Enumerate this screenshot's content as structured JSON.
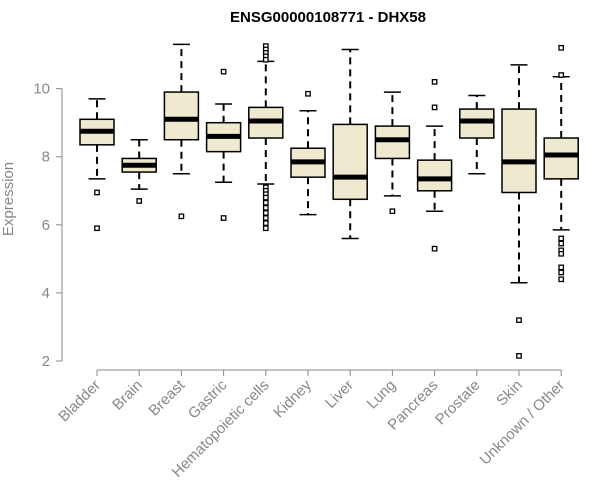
{
  "chart_data": {
    "type": "boxplot",
    "title": "ENSG00000108771 - DHX58",
    "ylabel": "Expression",
    "xlabel": "",
    "ylim": [
      2,
      11.4
    ],
    "yticks": [
      2,
      4,
      6,
      8,
      10
    ],
    "grid": false,
    "colors": {
      "box_fill": "#efe9d0",
      "box_stroke": "#000000",
      "median": "#000000",
      "axis": "#888888"
    },
    "categories": [
      "Bladder",
      "Brain",
      "Breast",
      "Gastric",
      "Hematopoietic cells",
      "Kidney",
      "Liver",
      "Lung",
      "Pancreas",
      "Prostate",
      "Skin",
      "Unknown / Other"
    ],
    "boxes": [
      {
        "name": "Bladder",
        "whisker_low": 7.35,
        "q1": 8.35,
        "median": 8.75,
        "q3": 9.1,
        "whisker_high": 9.7,
        "outliers": [
          6.95,
          5.9
        ]
      },
      {
        "name": "Brain",
        "whisker_low": 7.05,
        "q1": 7.55,
        "median": 7.75,
        "q3": 7.95,
        "whisker_high": 8.5,
        "outliers": [
          6.7
        ]
      },
      {
        "name": "Breast",
        "whisker_low": 7.5,
        "q1": 8.5,
        "median": 9.1,
        "q3": 9.9,
        "whisker_high": 11.3,
        "outliers": [
          6.25
        ]
      },
      {
        "name": "Gastric",
        "whisker_low": 7.25,
        "q1": 8.15,
        "median": 8.6,
        "q3": 9.0,
        "whisker_high": 9.55,
        "outliers": [
          10.5,
          6.2
        ]
      },
      {
        "name": "Hematopoietic cells",
        "whisker_low": 7.2,
        "q1": 8.55,
        "median": 9.05,
        "q3": 9.45,
        "whisker_high": 10.8,
        "outliers": [
          11.25,
          11.15,
          11.05,
          10.95,
          10.85,
          7.1,
          7.0,
          6.9,
          6.8,
          6.65,
          6.5,
          6.35,
          6.2,
          6.05,
          5.9
        ]
      },
      {
        "name": "Kidney",
        "whisker_low": 6.3,
        "q1": 7.4,
        "median": 7.85,
        "q3": 8.25,
        "whisker_high": 9.35,
        "outliers": [
          9.85
        ]
      },
      {
        "name": "Liver",
        "whisker_low": 5.6,
        "q1": 6.75,
        "median": 7.4,
        "q3": 8.95,
        "whisker_high": 11.15,
        "outliers": []
      },
      {
        "name": "Lung",
        "whisker_low": 6.85,
        "q1": 7.95,
        "median": 8.5,
        "q3": 8.9,
        "whisker_high": 9.9,
        "outliers": [
          6.4
        ]
      },
      {
        "name": "Pancreas",
        "whisker_low": 6.4,
        "q1": 7.0,
        "median": 7.35,
        "q3": 7.9,
        "whisker_high": 8.9,
        "outliers": [
          10.2,
          9.45,
          5.3
        ]
      },
      {
        "name": "Prostate",
        "whisker_low": 7.5,
        "q1": 8.55,
        "median": 9.05,
        "q3": 9.4,
        "whisker_high": 9.8,
        "outliers": []
      },
      {
        "name": "Skin",
        "whisker_low": 4.3,
        "q1": 6.95,
        "median": 7.85,
        "q3": 9.4,
        "whisker_high": 10.7,
        "outliers": [
          3.2,
          2.15
        ]
      },
      {
        "name": "Unknown / Other",
        "whisker_low": 5.85,
        "q1": 7.35,
        "median": 8.05,
        "q3": 8.55,
        "whisker_high": 10.35,
        "outliers": [
          11.2,
          10.4,
          5.6,
          5.45,
          5.25,
          5.15,
          4.75,
          4.6,
          4.4
        ]
      }
    ]
  }
}
